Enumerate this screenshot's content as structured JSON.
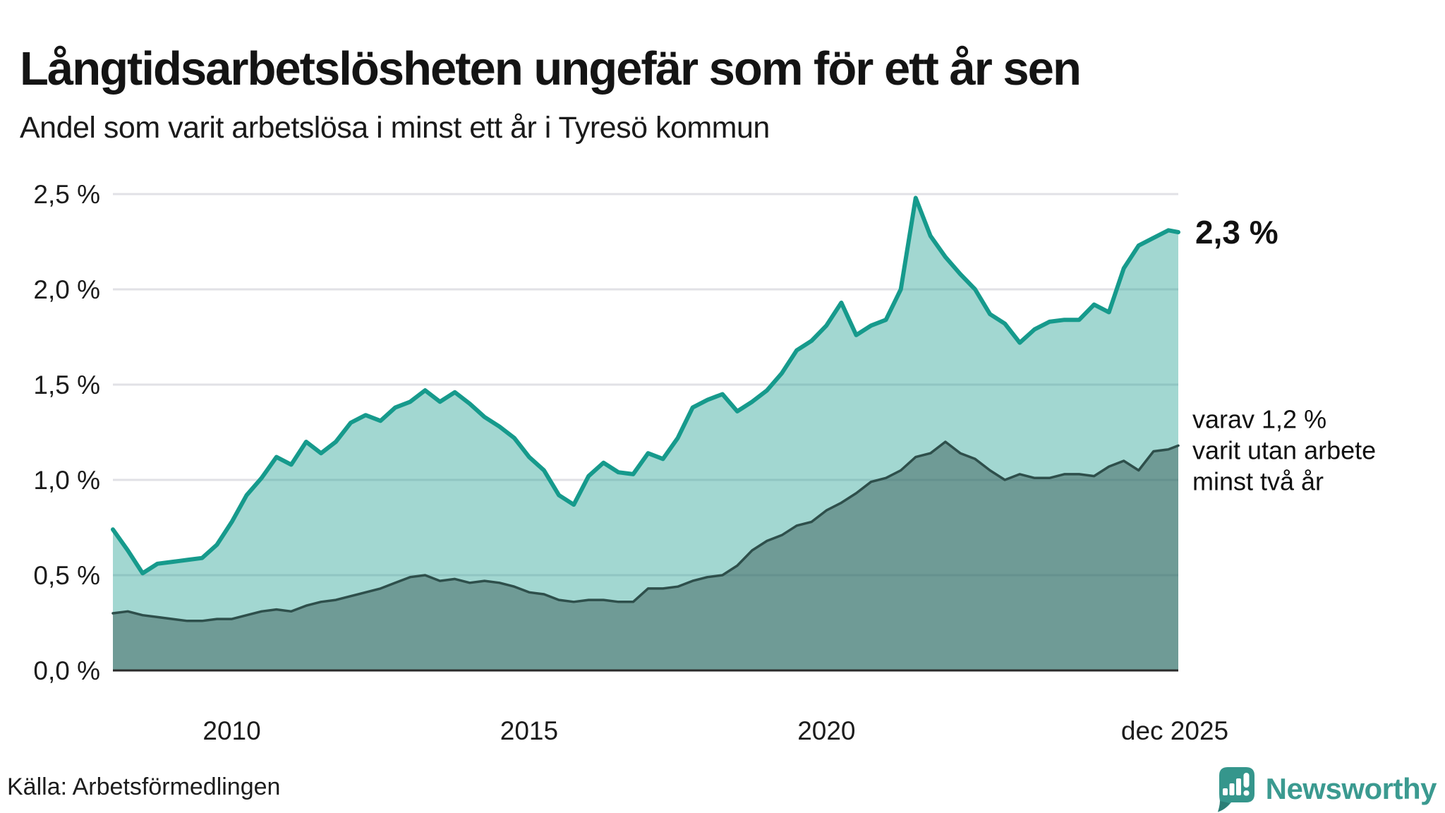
{
  "header": {
    "title": "Långtidsarbetslösheten ungefär som för ett år sen",
    "subtitle": "Andel som varit arbetslösa i minst ett år i Tyresö kommun"
  },
  "footer": {
    "source": "Källa: Arbetsförmedlingen",
    "brand": "Newsworthy"
  },
  "colors": {
    "line_total": "#169a8c",
    "fill_total": "rgba(22,154,140,0.40)",
    "line_two_years": "#2e4f4b",
    "fill_two_years": "rgba(46,79,75,0.44)",
    "gridline": "#e1e1e6",
    "axis": "#2b2b2b",
    "brand_teal": "#3b9a90"
  },
  "chart_data": {
    "type": "area",
    "title": "Långtidsarbetslösheten ungefär som för ett år sen",
    "subtitle": "Andel som varit arbetslösa i minst ett år i Tyresö kommun",
    "xlabel": "",
    "ylabel": "",
    "ylim": [
      0,
      2.5
    ],
    "xlim": [
      2008,
      2025.9167
    ],
    "grid": "horizontal",
    "legend_position": "annotations-right",
    "x": [
      2008.0,
      2008.25,
      2008.5,
      2008.75,
      2009.0,
      2009.25,
      2009.5,
      2009.75,
      2010.0,
      2010.25,
      2010.5,
      2010.75,
      2011.0,
      2011.25,
      2011.5,
      2011.75,
      2012.0,
      2012.25,
      2012.5,
      2012.75,
      2013.0,
      2013.25,
      2013.5,
      2013.75,
      2014.0,
      2014.25,
      2014.5,
      2014.75,
      2015.0,
      2015.25,
      2015.5,
      2015.75,
      2016.0,
      2016.25,
      2016.5,
      2016.75,
      2017.0,
      2017.25,
      2017.5,
      2017.75,
      2018.0,
      2018.25,
      2018.5,
      2018.75,
      2019.0,
      2019.25,
      2019.5,
      2019.75,
      2020.0,
      2020.25,
      2020.5,
      2020.75,
      2021.0,
      2021.25,
      2021.5,
      2021.75,
      2022.0,
      2022.25,
      2022.5,
      2022.75,
      2023.0,
      2023.25,
      2023.5,
      2023.75,
      2024.0,
      2024.25,
      2024.5,
      2024.75,
      2025.0,
      2025.25,
      2025.5,
      2025.75,
      2025.9167
    ],
    "series": [
      {
        "name": "Andel som varit arbetslösa i minst ett år",
        "end_label": "2,3 %",
        "values": [
          0.74,
          0.63,
          0.51,
          0.56,
          0.57,
          0.58,
          0.59,
          0.66,
          0.78,
          0.92,
          1.01,
          1.12,
          1.08,
          1.2,
          1.14,
          1.2,
          1.3,
          1.34,
          1.31,
          1.38,
          1.41,
          1.47,
          1.41,
          1.46,
          1.4,
          1.33,
          1.28,
          1.22,
          1.12,
          1.05,
          0.92,
          0.87,
          1.02,
          1.09,
          1.04,
          1.03,
          1.14,
          1.11,
          1.22,
          1.38,
          1.42,
          1.45,
          1.36,
          1.41,
          1.47,
          1.56,
          1.68,
          1.73,
          1.81,
          1.93,
          1.76,
          1.81,
          1.84,
          2.0,
          2.48,
          2.28,
          2.17,
          2.08,
          2.0,
          1.87,
          1.82,
          1.72,
          1.79,
          1.83,
          1.84,
          1.84,
          1.92,
          1.88,
          2.11,
          2.23,
          2.27,
          2.31,
          2.3
        ]
      },
      {
        "name": "varav varit utan arbete minst två år",
        "end_label_lines": [
          "varav 1,2 %",
          "varit utan arbete",
          "minst två år"
        ],
        "values": [
          0.3,
          0.31,
          0.29,
          0.28,
          0.27,
          0.26,
          0.26,
          0.27,
          0.27,
          0.29,
          0.31,
          0.32,
          0.31,
          0.34,
          0.36,
          0.37,
          0.39,
          0.41,
          0.43,
          0.46,
          0.49,
          0.5,
          0.47,
          0.48,
          0.46,
          0.47,
          0.46,
          0.44,
          0.41,
          0.4,
          0.37,
          0.36,
          0.37,
          0.37,
          0.36,
          0.36,
          0.43,
          0.43,
          0.44,
          0.47,
          0.49,
          0.5,
          0.55,
          0.63,
          0.68,
          0.71,
          0.76,
          0.78,
          0.84,
          0.88,
          0.93,
          0.99,
          1.01,
          1.05,
          1.12,
          1.14,
          1.2,
          1.14,
          1.11,
          1.05,
          1.0,
          1.03,
          1.01,
          1.01,
          1.03,
          1.03,
          1.02,
          1.07,
          1.1,
          1.05,
          1.15,
          1.16,
          1.18
        ]
      }
    ],
    "yticks": [
      {
        "value": 0.0,
        "label": "0,0 %"
      },
      {
        "value": 0.5,
        "label": "0,5 %"
      },
      {
        "value": 1.0,
        "label": "1,0 %"
      },
      {
        "value": 1.5,
        "label": "1,5 %"
      },
      {
        "value": 2.0,
        "label": "2,0 %"
      },
      {
        "value": 2.5,
        "label": "2,5 %"
      }
    ],
    "xticks": [
      {
        "value": 2010,
        "label": "2010"
      },
      {
        "value": 2015,
        "label": "2015"
      },
      {
        "value": 2020,
        "label": "2020"
      },
      {
        "value": 2025.9167,
        "label": "dec 2025"
      }
    ]
  }
}
